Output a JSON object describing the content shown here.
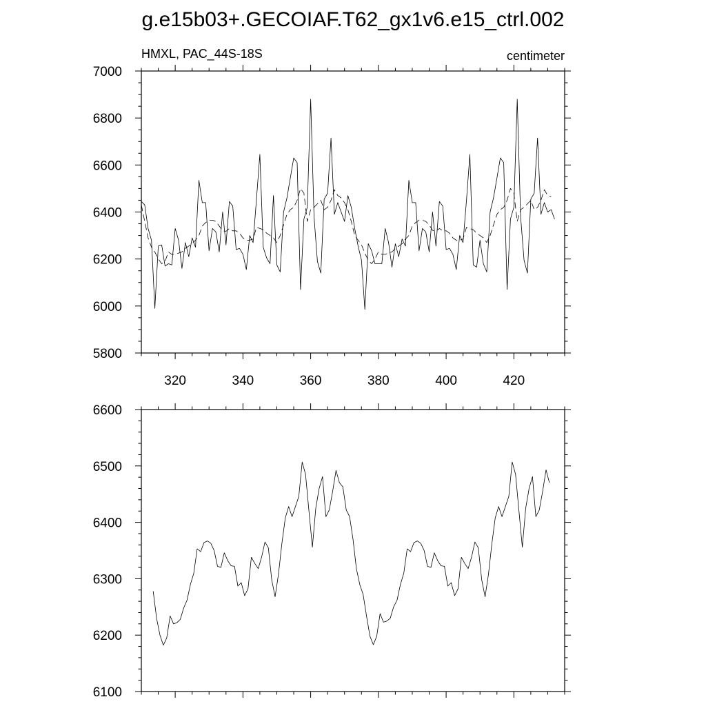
{
  "title": "g.e15b03+.GECOIAF.T62_gx1v6.e15_ctrl.002",
  "chart_data": [
    {
      "type": "line",
      "left_label": "HMXL, PAC_44S-18S",
      "right_label": "centimeter",
      "xlim": [
        310,
        435
      ],
      "ylim": [
        5800,
        7000
      ],
      "xticks": [
        320,
        340,
        360,
        380,
        400,
        420
      ],
      "yticks": [
        5800,
        6000,
        6200,
        6400,
        6600,
        6800,
        7000
      ],
      "x_minor_step": 5,
      "y_minor_step": 50,
      "show_xtick_labels": true,
      "x_start": 310,
      "x_step": 1,
      "series": [
        {
          "style": "solid",
          "values": [
            6445,
            6430,
            6330,
            6280,
            5990,
            6255,
            6260,
            6170,
            6180,
            6175,
            6330,
            6280,
            6160,
            6270,
            6210,
            6290,
            6250,
            6535,
            6440,
            6440,
            6235,
            6330,
            6315,
            6230,
            6400,
            6260,
            6445,
            6425,
            6240,
            6245,
            6220,
            6155,
            6300,
            6270,
            6455,
            6645,
            6250,
            6205,
            6180,
            6470,
            6175,
            6145,
            6400,
            6460,
            6545,
            6630,
            6610,
            6070,
            6370,
            6420,
            6880,
            6380,
            6190,
            6140,
            6455,
            6480,
            6715,
            6390,
            6440,
            6400,
            6360,
            6470,
            6420,
            6330,
            6255,
            6195,
            5985,
            6265,
            6235,
            6180,
            6180,
            6180,
            6330,
            6270,
            6165,
            6265,
            6210,
            6285,
            6255,
            6535,
            6440,
            6440,
            6235,
            6330,
            6315,
            6230,
            6400,
            6255,
            6445,
            6425,
            6240,
            6245,
            6220,
            6155,
            6300,
            6270,
            6450,
            6645,
            6175,
            6165,
            6280,
            6180,
            6145,
            6400,
            6460,
            6545,
            6630,
            6610,
            6070,
            6370,
            6420,
            6880,
            6380,
            6195,
            6140,
            6455,
            6480,
            6715,
            6390,
            6440,
            6400,
            6410,
            6370
          ]
        },
        {
          "style": "dashed",
          "values": [
            6430,
            6360,
            6290,
            6250,
            6230,
            6200,
            6180,
            6190,
            6230,
            6220,
            6220,
            6225,
            6230,
            6245,
            6255,
            6265,
            6280,
            6300,
            6340,
            6355,
            6365,
            6365,
            6360,
            6340,
            6320,
            6318,
            6330,
            6320,
            6320,
            6310,
            6290,
            6280,
            6280,
            6285,
            6335,
            6330,
            6325,
            6310,
            6300,
            6290,
            6270,
            6300,
            6345,
            6390,
            6410,
            6420,
            6450,
            6500,
            6480,
            6360,
            6410,
            6420,
            6435,
            6450,
            6410,
            6420,
            6450,
            6495,
            6470,
            6460,
            6440,
            6410,
            6360,
            6300,
            6280,
            6260,
            6225,
            6195,
            6180,
            6200,
            6230,
            6220,
            6220,
            6225,
            6230,
            6245,
            6255,
            6265,
            6285,
            6300,
            6340,
            6355,
            6365,
            6365,
            6360,
            6345,
            6322,
            6318,
            6330,
            6320,
            6320,
            6310,
            6290,
            6280,
            6280,
            6285,
            6335,
            6330,
            6325,
            6310,
            6300,
            6290,
            6270,
            6300,
            6345,
            6390,
            6410,
            6420,
            6450,
            6500,
            6480,
            6360,
            6410,
            6420,
            6435,
            6450,
            6410,
            6420,
            6450,
            6495,
            6470,
            6465
          ]
        }
      ]
    },
    {
      "type": "line",
      "left_label": "",
      "right_label": "",
      "xlim": [
        310,
        435
      ],
      "ylim": [
        6100,
        6600
      ],
      "xticks": [
        320,
        340,
        360,
        380,
        400,
        420
      ],
      "yticks": [
        6100,
        6200,
        6300,
        6400,
        6500,
        6600
      ],
      "x_minor_step": 5,
      "y_minor_step": 20,
      "show_xtick_labels": false,
      "x_start": 313.5,
      "x_step": 1,
      "series": [
        {
          "style": "solid",
          "values": [
            6278,
            6230,
            6200,
            6182,
            6195,
            6234,
            6220,
            6222,
            6228,
            6248,
            6262,
            6290,
            6310,
            6353,
            6348,
            6364,
            6367,
            6363,
            6350,
            6322,
            6320,
            6346,
            6332,
            6323,
            6322,
            6287,
            6293,
            6270,
            6282,
            6338,
            6327,
            6318,
            6338,
            6365,
            6355,
            6298,
            6268,
            6308,
            6362,
            6408,
            6428,
            6410,
            6428,
            6446,
            6507,
            6485,
            6420,
            6356,
            6425,
            6460,
            6481,
            6410,
            6422,
            6455,
            6492,
            6470,
            6463,
            6422,
            6410,
            6370,
            6318,
            6290,
            6272,
            6234,
            6198,
            6183,
            6198,
            6238,
            6223,
            6225,
            6230,
            6250,
            6262,
            6290,
            6310,
            6353,
            6348,
            6364,
            6367,
            6363,
            6350,
            6322,
            6320,
            6346,
            6332,
            6323,
            6322,
            6287,
            6293,
            6270,
            6282,
            6338,
            6327,
            6318,
            6338,
            6365,
            6355,
            6298,
            6268,
            6308,
            6362,
            6408,
            6428,
            6410,
            6428,
            6446,
            6507,
            6485,
            6420,
            6356,
            6425,
            6460,
            6481,
            6410,
            6422,
            6455,
            6493,
            6470
          ]
        }
      ]
    }
  ]
}
